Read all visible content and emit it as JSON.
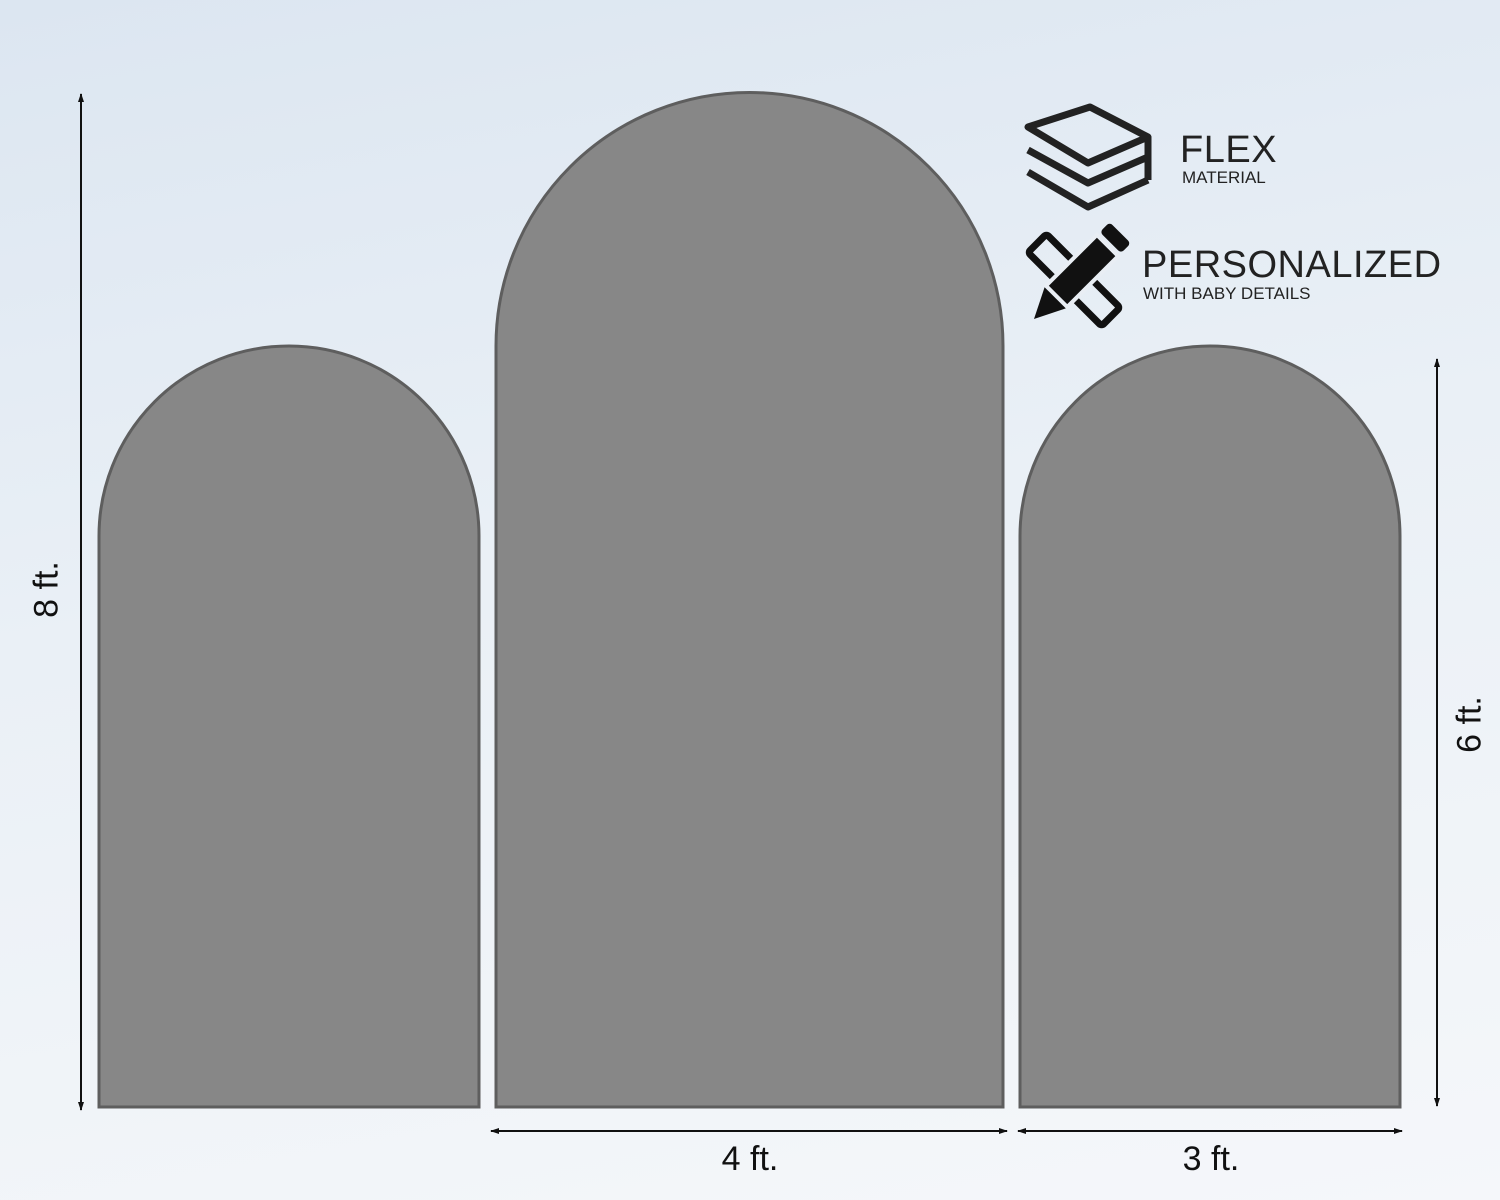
{
  "colors": {
    "panel": "#878787",
    "panel_edge": "#5e5e5e",
    "text": "#111111"
  },
  "panels": [
    {
      "name": "left-arch",
      "height": "6 ft.",
      "width": "3 ft."
    },
    {
      "name": "center-arch",
      "height": "8 ft.",
      "width": "4 ft."
    },
    {
      "name": "right-arch",
      "height": "6 ft.",
      "width": "3 ft."
    }
  ],
  "dimensions": {
    "height_large": "8 ft.",
    "height_small": "6 ft.",
    "width_center": "4 ft.",
    "width_right": "3 ft."
  },
  "features": [
    {
      "icon": "layers-icon",
      "title": "FLEX",
      "subtitle": "MATERIAL"
    },
    {
      "icon": "pencil-ruler-icon",
      "title": "PERSONALIZED",
      "subtitle": "WITH BABY DETAILS"
    }
  ]
}
